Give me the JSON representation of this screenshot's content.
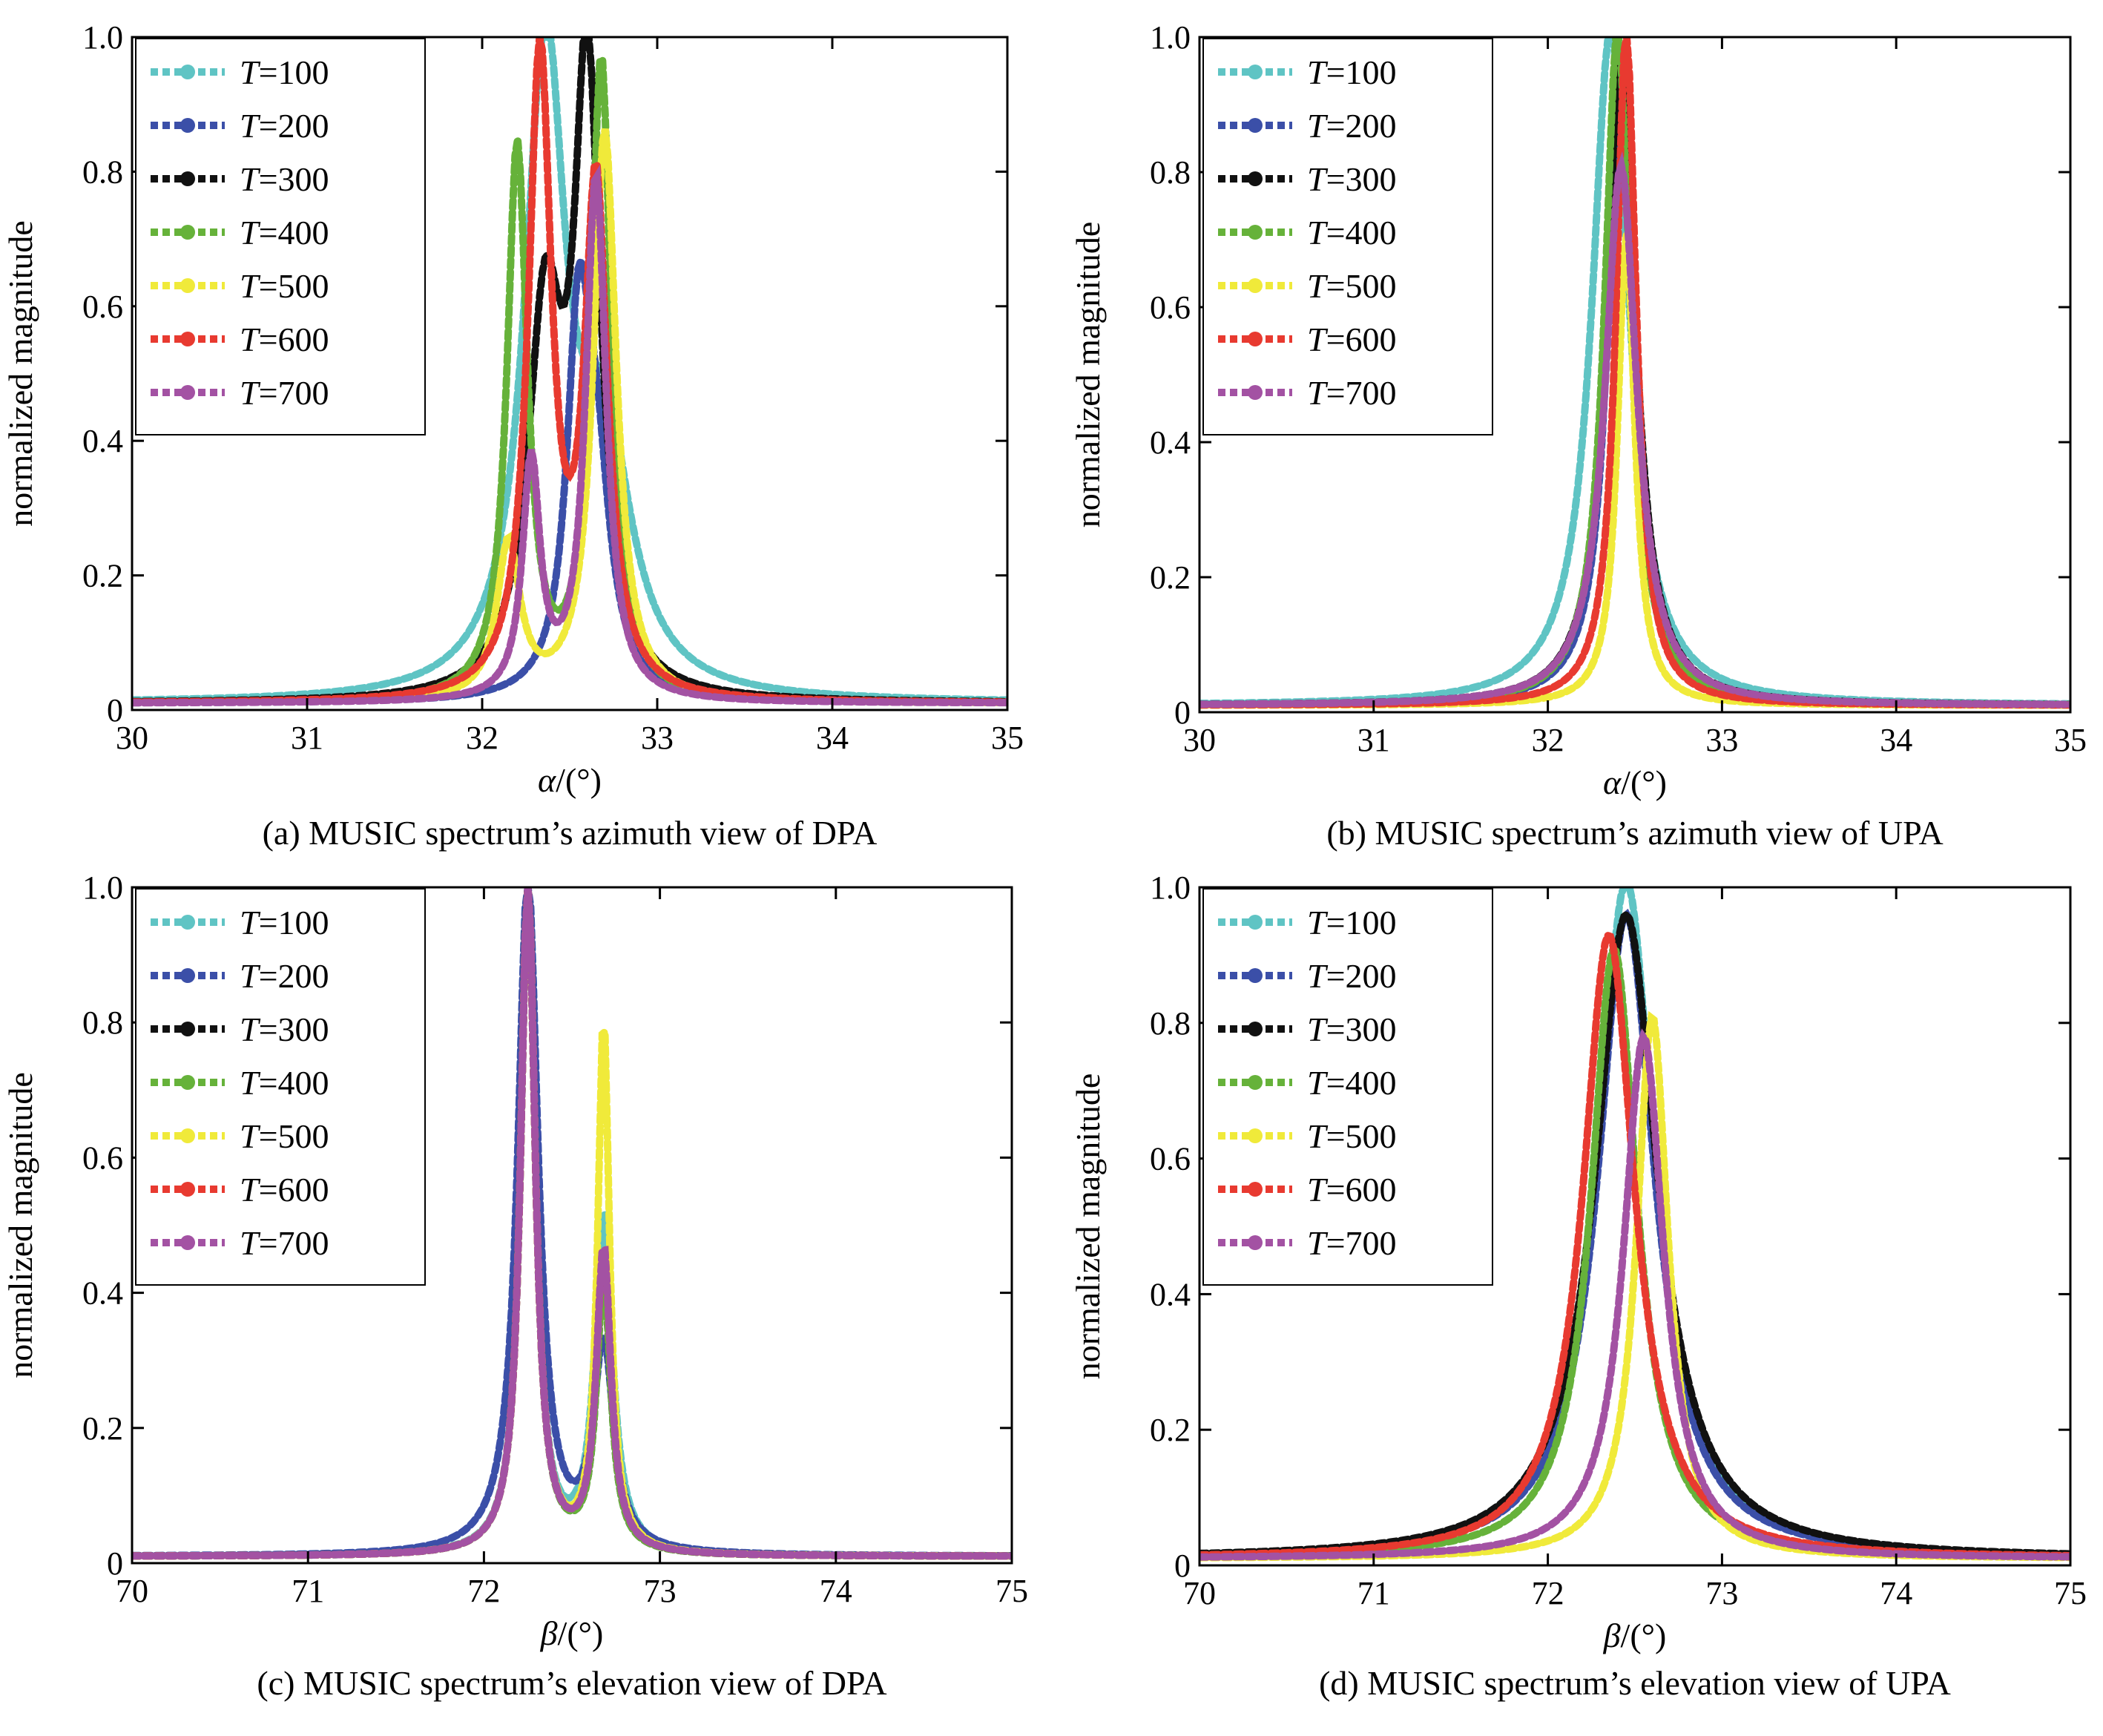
{
  "chart_data": [
    {
      "id": "a",
      "type": "line",
      "caption": "(a) MUSIC spectrum’s azimuth view of DPA",
      "xlabel_symbol": "α",
      "xlabel_unit": "/(°)",
      "ylabel": "normalized magnitude",
      "xlim": [
        30,
        35
      ],
      "ylim": [
        0,
        1
      ],
      "xticks": [
        "30",
        "31",
        "32",
        "33",
        "34",
        "35"
      ],
      "yticks": [
        "0",
        "0.2",
        "0.4",
        "0.6",
        "0.8",
        "1.0"
      ],
      "grid": false,
      "legend_position": "top-left",
      "series": [
        {
          "name": "T=100",
          "color": "#5fc4c4",
          "peaks": [
            {
              "mu": 32.36,
              "amp": 0.95,
              "w": 0.14
            },
            {
              "mu": 32.7,
              "amp": 0.35,
              "w": 0.18
            }
          ]
        },
        {
          "name": "T=200",
          "color": "#3b4fa8",
          "peaks": [
            {
              "mu": 32.55,
              "amp": 0.5,
              "w": 0.08
            },
            {
              "mu": 32.65,
              "amp": 0.3,
              "w": 0.1
            }
          ]
        },
        {
          "name": "T=300",
          "color": "#111111",
          "peaks": [
            {
              "mu": 32.36,
              "amp": 0.55,
              "w": 0.12
            },
            {
              "mu": 32.6,
              "amp": 0.91,
              "w": 0.09
            }
          ]
        },
        {
          "name": "T=400",
          "color": "#66b23a",
          "peaks": [
            {
              "mu": 32.2,
              "amp": 0.82,
              "w": 0.07
            },
            {
              "mu": 32.68,
              "amp": 0.95,
              "w": 0.07
            }
          ]
        },
        {
          "name": "T=500",
          "color": "#f0ea3a",
          "peaks": [
            {
              "mu": 32.15,
              "amp": 0.23,
              "w": 0.08
            },
            {
              "mu": 32.7,
              "amp": 0.85,
              "w": 0.08
            }
          ]
        },
        {
          "name": "T=600",
          "color": "#e83a30",
          "peaks": [
            {
              "mu": 32.33,
              "amp": 0.95,
              "w": 0.08
            },
            {
              "mu": 32.65,
              "amp": 0.75,
              "w": 0.08
            }
          ]
        },
        {
          "name": "T=700",
          "color": "#a352a3",
          "peaks": [
            {
              "mu": 32.28,
              "amp": 0.35,
              "w": 0.06
            },
            {
              "mu": 32.65,
              "amp": 0.78,
              "w": 0.07
            }
          ]
        }
      ]
    },
    {
      "id": "b",
      "type": "line",
      "caption": "(b) MUSIC spectrum’s azimuth view of UPA",
      "xlabel_symbol": "α",
      "xlabel_unit": "/(°)",
      "ylabel": "normalized magnitude",
      "xlim": [
        30,
        35
      ],
      "ylim": [
        0,
        1
      ],
      "xticks": [
        "30",
        "31",
        "32",
        "33",
        "34",
        "35"
      ],
      "yticks": [
        "0",
        "0.2",
        "0.4",
        "0.6",
        "0.8",
        "1.0"
      ],
      "grid": false,
      "legend_position": "top-left",
      "series": [
        {
          "name": "T=100",
          "color": "#5fc4c4",
          "peaks": [
            {
              "mu": 32.36,
              "amp": 1.0,
              "w": 0.13
            }
          ]
        },
        {
          "name": "T=200",
          "color": "#3b4fa8",
          "peaks": [
            {
              "mu": 32.42,
              "amp": 0.97,
              "w": 0.09
            }
          ]
        },
        {
          "name": "T=300",
          "color": "#111111",
          "peaks": [
            {
              "mu": 32.42,
              "amp": 0.97,
              "w": 0.1
            }
          ]
        },
        {
          "name": "T=400",
          "color": "#66b23a",
          "peaks": [
            {
              "mu": 32.4,
              "amp": 1.0,
              "w": 0.09
            }
          ]
        },
        {
          "name": "T=500",
          "color": "#f0ea3a",
          "peaks": [
            {
              "mu": 32.45,
              "amp": 0.7,
              "w": 0.06
            }
          ]
        },
        {
          "name": "T=600",
          "color": "#e83a30",
          "peaks": [
            {
              "mu": 32.45,
              "amp": 1.0,
              "w": 0.07
            }
          ]
        },
        {
          "name": "T=700",
          "color": "#a352a3",
          "peaks": [
            {
              "mu": 32.42,
              "amp": 0.8,
              "w": 0.11
            }
          ]
        }
      ]
    },
    {
      "id": "c",
      "type": "line",
      "caption": "(c) MUSIC spectrum’s elevation view of DPA",
      "xlabel_symbol": "β",
      "xlabel_unit": "/(°)",
      "ylabel": "normalized magnitude",
      "xlim": [
        70,
        75
      ],
      "ylim": [
        0,
        1
      ],
      "xticks": [
        "70",
        "71",
        "72",
        "73",
        "74",
        "75"
      ],
      "yticks": [
        "0",
        "0.2",
        "0.4",
        "0.6",
        "0.8",
        "1.0"
      ],
      "grid": false,
      "legend_position": "top-left",
      "series": [
        {
          "name": "T=100",
          "color": "#5fc4c4",
          "peaks": [
            {
              "mu": 72.25,
              "amp": 1.0,
              "w": 0.05
            },
            {
              "mu": 72.68,
              "amp": 0.5,
              "w": 0.06
            }
          ]
        },
        {
          "name": "T=200",
          "color": "#3b4fa8",
          "peaks": [
            {
              "mu": 72.25,
              "amp": 1.0,
              "w": 0.07
            },
            {
              "mu": 72.68,
              "amp": 0.3,
              "w": 0.07
            }
          ]
        },
        {
          "name": "T=300",
          "color": "#111111",
          "peaks": [
            {
              "mu": 72.25,
              "amp": 1.0,
              "w": 0.05
            },
            {
              "mu": 72.68,
              "amp": 0.4,
              "w": 0.05
            }
          ]
        },
        {
          "name": "T=400",
          "color": "#66b23a",
          "peaks": [
            {
              "mu": 72.25,
              "amp": 1.0,
              "w": 0.05
            },
            {
              "mu": 72.68,
              "amp": 0.4,
              "w": 0.05
            }
          ]
        },
        {
          "name": "T=500",
          "color": "#f0ea3a",
          "peaks": [
            {
              "mu": 72.25,
              "amp": 1.0,
              "w": 0.05
            },
            {
              "mu": 72.68,
              "amp": 0.79,
              "w": 0.04
            }
          ]
        },
        {
          "name": "T=600",
          "color": "#e83a30",
          "peaks": [
            {
              "mu": 72.25,
              "amp": 1.0,
              "w": 0.05
            },
            {
              "mu": 72.68,
              "amp": 0.45,
              "w": 0.05
            }
          ]
        },
        {
          "name": "T=700",
          "color": "#a352a3",
          "peaks": [
            {
              "mu": 72.25,
              "amp": 1.0,
              "w": 0.05
            },
            {
              "mu": 72.68,
              "amp": 0.45,
              "w": 0.05
            }
          ]
        }
      ]
    },
    {
      "id": "d",
      "type": "line",
      "caption": "(d) MUSIC spectrum’s elevation view of UPA",
      "xlabel_symbol": "β",
      "xlabel_unit": "/(°)",
      "ylabel": "normalized magnitude",
      "xlim": [
        70,
        75
      ],
      "ylim": [
        0,
        1
      ],
      "xticks": [
        "70",
        "71",
        "72",
        "73",
        "74",
        "75"
      ],
      "yticks": [
        "0",
        "0.2",
        "0.4",
        "0.6",
        "0.8",
        "1.0"
      ],
      "grid": false,
      "legend_position": "top-left",
      "series": [
        {
          "name": "T=100",
          "color": "#5fc4c4",
          "peaks": [
            {
              "mu": 72.45,
              "amp": 1.0,
              "w": 0.2
            }
          ]
        },
        {
          "name": "T=200",
          "color": "#3b4fa8",
          "peaks": [
            {
              "mu": 72.45,
              "amp": 0.95,
              "w": 0.2
            }
          ]
        },
        {
          "name": "T=300",
          "color": "#111111",
          "peaks": [
            {
              "mu": 72.45,
              "amp": 0.95,
              "w": 0.22
            }
          ]
        },
        {
          "name": "T=400",
          "color": "#66b23a",
          "peaks": [
            {
              "mu": 72.38,
              "amp": 0.9,
              "w": 0.16
            }
          ]
        },
        {
          "name": "T=500",
          "color": "#f0ea3a",
          "peaks": [
            {
              "mu": 72.6,
              "amp": 0.8,
              "w": 0.11
            }
          ]
        },
        {
          "name": "T=600",
          "color": "#e83a30",
          "peaks": [
            {
              "mu": 72.35,
              "amp": 0.92,
              "w": 0.18
            }
          ]
        },
        {
          "name": "T=700",
          "color": "#a352a3",
          "peaks": [
            {
              "mu": 72.55,
              "amp": 0.77,
              "w": 0.14
            }
          ]
        }
      ]
    }
  ]
}
